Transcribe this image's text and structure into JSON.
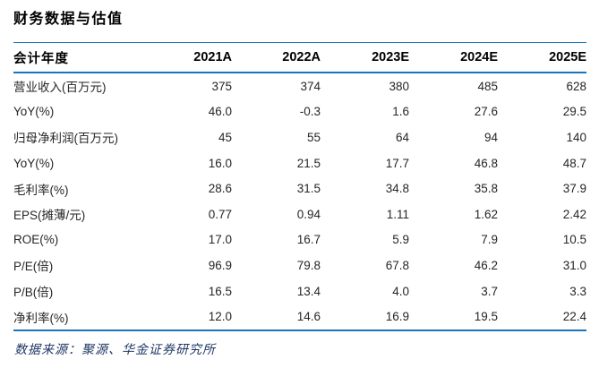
{
  "title": "财务数据与估值",
  "table": {
    "header": [
      "会计年度",
      "2021A",
      "2022A",
      "2023E",
      "2024E",
      "2025E"
    ],
    "rows": [
      {
        "label": "营业收入(百万元)",
        "values": [
          "375",
          "374",
          "380",
          "485",
          "628"
        ]
      },
      {
        "label": "YoY(%)",
        "values": [
          "46.0",
          "-0.3",
          "1.6",
          "27.6",
          "29.5"
        ]
      },
      {
        "label": "归母净利润(百万元)",
        "values": [
          "45",
          "55",
          "64",
          "94",
          "140"
        ]
      },
      {
        "label": "YoY(%)",
        "values": [
          "16.0",
          "21.5",
          "17.7",
          "46.8",
          "48.7"
        ]
      },
      {
        "label": "毛利率(%)",
        "values": [
          "28.6",
          "31.5",
          "34.8",
          "35.8",
          "37.9"
        ]
      },
      {
        "label": "EPS(摊薄/元)",
        "values": [
          "0.77",
          "0.94",
          "1.11",
          "1.62",
          "2.42"
        ]
      },
      {
        "label": "ROE(%)",
        "values": [
          "17.0",
          "16.7",
          "5.9",
          "7.9",
          "10.5"
        ]
      },
      {
        "label": "P/E(倍)",
        "values": [
          "96.9",
          "79.8",
          "67.8",
          "46.2",
          "31.0"
        ]
      },
      {
        "label": "P/B(倍)",
        "values": [
          "16.5",
          "13.4",
          "4.0",
          "3.7",
          "3.3"
        ]
      },
      {
        "label": "净利率(%)",
        "values": [
          "12.0",
          "14.6",
          "16.9",
          "19.5",
          "22.4"
        ]
      }
    ]
  },
  "footer": "数据来源：聚源、华金证券研究所",
  "colors": {
    "accent_blue": "#1b75bc",
    "footer_navy": "#1f3864",
    "body_text": "#262626"
  }
}
